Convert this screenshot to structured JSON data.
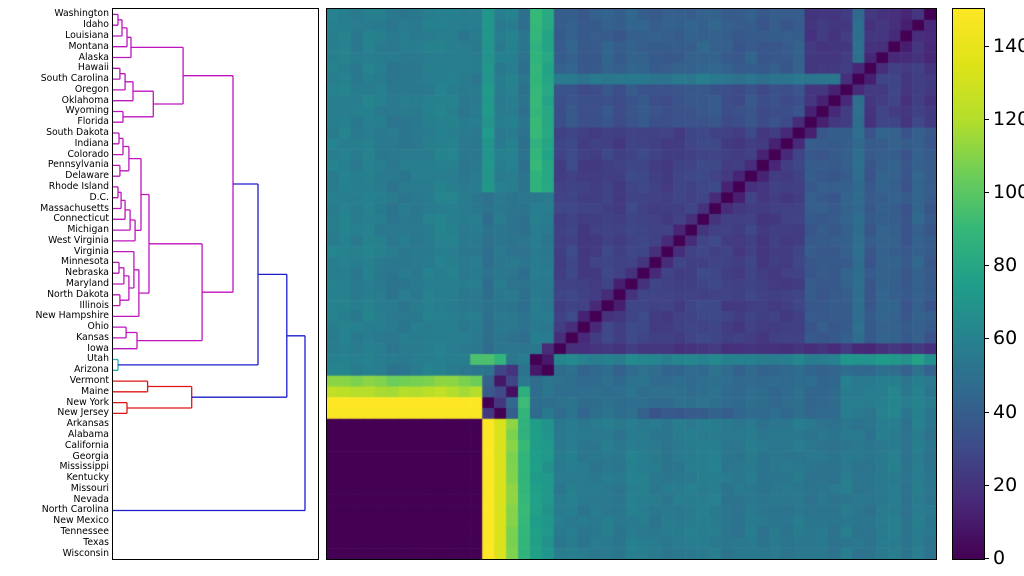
{
  "figure": {
    "background": "#ffffff",
    "title": ""
  },
  "chart_data": {
    "type": "heatmap",
    "title": "",
    "xlabel": "",
    "ylabel": "",
    "rows": [
      "Washington",
      "Idaho",
      "Louisiana",
      "Montana",
      "Alaska",
      "Hawaii",
      "South Carolina",
      "Oregon",
      "Oklahoma",
      "Wyoming",
      "Florida",
      "South Dakota",
      "Indiana",
      "Colorado",
      "Pennsylvania",
      "Delaware",
      "Rhode Island",
      "D.C.",
      "Massachusetts",
      "Connecticut",
      "Michigan",
      "West Virginia",
      "Virginia",
      "Minnesota",
      "Nebraska",
      "Maryland",
      "North Dakota",
      "Illinois",
      "New Hampshire",
      "Ohio",
      "Kansas",
      "Iowa",
      "Utah",
      "Arizona",
      "Vermont",
      "Maine",
      "New York",
      "New Jersey",
      "Arkansas",
      "Alabama",
      "California",
      "Georgia",
      "Mississippi",
      "Kentucky",
      "Missouri",
      "Nevada",
      "North Carolina",
      "New Mexico",
      "Tennessee",
      "Texas",
      "Wisconsin"
    ],
    "row_order_note": "rows ordered by hierarchical-clustering dendrogram leaves; columns are a different permutation of the same 51 states",
    "n_rows": 51,
    "n_cols": 51,
    "vmin": 0,
    "vmax": 150,
    "colormap": "viridis",
    "colormap_stops": [
      [
        68,
        1,
        84
      ],
      [
        72,
        40,
        120
      ],
      [
        62,
        74,
        137
      ],
      [
        49,
        104,
        142
      ],
      [
        38,
        130,
        142
      ],
      [
        31,
        158,
        137
      ],
      [
        53,
        183,
        121
      ],
      [
        110,
        206,
        88
      ],
      [
        181,
        222,
        43
      ],
      [
        223,
        227,
        24
      ],
      [
        253,
        231,
        37
      ]
    ],
    "colorbar_ticks": [
      0,
      20,
      40,
      60,
      80,
      100,
      120,
      140
    ],
    "value_blocks": [
      [
        1,
        34,
        1,
        13,
        57
      ],
      [
        1,
        17,
        14,
        14,
        70
      ],
      [
        1,
        17,
        15,
        15,
        58
      ],
      [
        1,
        17,
        16,
        16,
        60
      ],
      [
        1,
        17,
        17,
        17,
        50
      ],
      [
        1,
        17,
        18,
        18,
        92
      ],
      [
        1,
        17,
        19,
        19,
        80
      ],
      [
        18,
        32,
        14,
        14,
        48
      ],
      [
        18,
        32,
        15,
        15,
        55
      ],
      [
        18,
        32,
        16,
        16,
        55
      ],
      [
        18,
        32,
        17,
        17,
        50
      ],
      [
        18,
        32,
        18,
        18,
        60
      ],
      [
        18,
        32,
        19,
        19,
        55
      ],
      [
        1,
        32,
        20,
        51,
        40
      ],
      [
        1,
        11,
        41,
        51,
        24
      ],
      [
        8,
        11,
        20,
        40,
        34
      ],
      [
        12,
        32,
        20,
        40,
        26
      ],
      [
        1,
        5,
        47,
        51,
        18
      ],
      [
        7,
        7,
        20,
        44,
        54
      ],
      [
        1,
        32,
        45,
        45,
        50
      ],
      [
        32,
        32,
        20,
        51,
        20
      ],
      [
        33,
        33,
        14,
        15,
        90
      ],
      [
        33,
        33,
        16,
        17,
        55
      ],
      [
        33,
        33,
        18,
        18,
        0
      ],
      [
        33,
        33,
        19,
        19,
        12
      ],
      [
        33,
        33,
        20,
        43,
        60
      ],
      [
        33,
        33,
        44,
        51,
        72
      ],
      [
        34,
        34,
        14,
        17,
        50
      ],
      [
        34,
        34,
        18,
        18,
        12
      ],
      [
        34,
        34,
        19,
        19,
        0
      ],
      [
        34,
        34,
        20,
        51,
        46
      ],
      [
        35,
        35,
        1,
        13,
        108
      ],
      [
        36,
        36,
        1,
        13,
        120
      ],
      [
        37,
        37,
        1,
        13,
        150
      ],
      [
        38,
        38,
        1,
        13,
        148
      ],
      [
        35,
        38,
        18,
        19,
        52
      ],
      [
        35,
        38,
        20,
        51,
        48
      ],
      [
        38,
        38,
        27,
        34,
        38
      ],
      [
        35,
        38,
        44,
        51,
        58
      ],
      [
        39,
        51,
        1,
        13,
        0
      ],
      [
        39,
        51,
        14,
        14,
        150
      ],
      [
        39,
        51,
        15,
        15,
        133
      ],
      [
        39,
        51,
        16,
        16,
        112
      ],
      [
        39,
        51,
        17,
        17,
        88
      ],
      [
        39,
        51,
        18,
        18,
        78
      ],
      [
        39,
        51,
        19,
        19,
        70
      ],
      [
        39,
        51,
        20,
        51,
        55
      ]
    ],
    "cell_overrides": [
      [
        37,
        14,
        0
      ],
      [
        38,
        14,
        22
      ],
      [
        35,
        14,
        42
      ],
      [
        36,
        14,
        38
      ],
      [
        37,
        15,
        22
      ],
      [
        38,
        15,
        0
      ],
      [
        35,
        15,
        8
      ],
      [
        36,
        15,
        30
      ],
      [
        37,
        16,
        45
      ],
      [
        38,
        16,
        40
      ],
      [
        35,
        16,
        28
      ],
      [
        36,
        16,
        5
      ],
      [
        37,
        17,
        92
      ],
      [
        38,
        17,
        88
      ],
      [
        35,
        17,
        55
      ],
      [
        36,
        17,
        85
      ],
      [
        33,
        13,
        96
      ],
      [
        33,
        14,
        96
      ],
      [
        34,
        15,
        28
      ],
      [
        34,
        16,
        20
      ]
    ],
    "antidiagonal": {
      "rows": [
        1,
        32
      ],
      "col_of_row": "52-r",
      "value": 0,
      "shoulder_value": 16
    },
    "noise": {
      "col_amp": 3.2,
      "cell_amp": 2.6,
      "skip_below": 6,
      "skip_above": 130
    }
  },
  "dendrogram": {
    "link_colors": {
      "m": "#bd16bd",
      "b": "#1c1ccd",
      "c": "#1cb8b4",
      "r": "#e01616"
    },
    "max_distance": 100,
    "tree": {
      "d": 100,
      "c": "b",
      "ch": [
        {
          "d": 90.5,
          "c": "b",
          "ch": [
            {
              "d": 75.5,
              "c": "b",
              "ch": [
                {
                  "d": 62.5,
                  "c": "m",
                  "ch": [
                    {
                      "d": 36.5,
                      "c": "m",
                      "ch": [
                        {
                          "d": 9.4,
                          "c": "m",
                          "ch": [
                            {
                              "d": 7.3,
                              "c": "m",
                              "ch": [
                                {
                                  "d": 4.7,
                                  "c": "m",
                                  "ch": [
                                    {
                                      "d": 2.6,
                                      "c": "m",
                                      "ch": [
                                        1,
                                        2
                                      ]
                                    },
                                    3
                                  ]
                                },
                                4
                              ]
                            },
                            5
                          ]
                        },
                        {
                          "d": 21,
                          "c": "m",
                          "ch": [
                            {
                              "d": 10.4,
                              "c": "m",
                              "ch": [
                                {
                                  "d": 6.3,
                                  "c": "m",
                                  "ch": [
                                    {
                                      "d": 3.6,
                                      "c": "m",
                                      "ch": [
                                        6,
                                        7
                                      ]
                                    },
                                    8
                                  ]
                                },
                                9
                              ]
                            },
                            {
                              "d": 5.2,
                              "c": "m",
                              "ch": [
                                10,
                                11
                              ]
                            }
                          ]
                        }
                      ]
                    },
                    {
                      "d": 46.4,
                      "c": "m",
                      "ch": [
                        {
                          "d": 18.75,
                          "c": "m",
                          "ch": [
                            {
                              "d": 14.6,
                              "c": "m",
                              "ch": [
                                {
                                  "d": 8.3,
                                  "c": "m",
                                  "ch": [
                                    {
                                      "d": 5.2,
                                      "c": "m",
                                      "ch": [
                                        {
                                          "d": 3.1,
                                          "c": "m",
                                          "ch": [
                                            12,
                                            13
                                          ]
                                        },
                                        14
                                      ]
                                    },
                                    {
                                      "d": 3.6,
                                      "c": "m",
                                      "ch": [
                                        15,
                                        16
                                      ]
                                    }
                                  ]
                                },
                                {
                                  "d": 11.5,
                                  "c": "m",
                                  "ch": [
                                    {
                                      "d": 8.9,
                                      "c": "m",
                                      "ch": [
                                        {
                                          "d": 6.3,
                                          "c": "m",
                                          "ch": [
                                            {
                                              "d": 4.2,
                                              "c": "m",
                                              "ch": [
                                                {
                                                  "d": 2.6,
                                                  "c": "m",
                                                  "ch": [
                                                    17,
                                                    18
                                                  ]
                                                },
                                                19
                                              ]
                                            },
                                            20
                                          ]
                                        },
                                        21
                                      ]
                                    },
                                    22
                                  ]
                                }
                              ]
                            },
                            {
                              "d": 13.5,
                              "c": "m",
                              "ch": [
                                {
                                  "d": 10.9,
                                  "c": "m",
                                  "ch": [
                                    23,
                                    {
                                      "d": 8.3,
                                      "c": "m",
                                      "ch": [
                                        {
                                          "d": 5.7,
                                          "c": "m",
                                          "ch": [
                                            {
                                              "d": 3.1,
                                              "c": "m",
                                              "ch": [
                                                24,
                                                25
                                              ]
                                            },
                                            26
                                          ]
                                        },
                                        {
                                          "d": 3.6,
                                          "c": "m",
                                          "ch": [
                                            27,
                                            28
                                          ]
                                        }
                                      ]
                                    }
                                  ]
                                },
                                29
                              ]
                            }
                          ]
                        },
                        {
                          "d": 12.5,
                          "c": "m",
                          "ch": [
                            {
                              "d": 6.8,
                              "c": "m",
                              "ch": [
                                30,
                                31
                              ]
                            },
                            32
                          ]
                        }
                      ]
                    }
                  ]
                },
                {
                  "d": 2.6,
                  "c": "c",
                  "ch": [
                    33,
                    34
                  ]
                }
              ]
            },
            {
              "d": 41,
              "c": "r",
              "ch": [
                {
                  "d": 18,
                  "c": "r",
                  "ch": [
                    35,
                    36
                  ]
                },
                {
                  "d": 7.3,
                  "c": "r",
                  "ch": [
                    37,
                    38
                  ]
                }
              ]
            }
          ]
        },
        {
          "flat": true,
          "row": 47,
          "rows_span": [
            39,
            51
          ]
        }
      ]
    }
  }
}
